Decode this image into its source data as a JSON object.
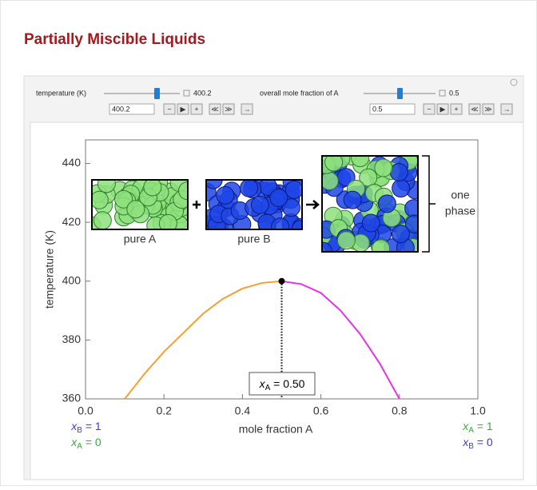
{
  "header": {
    "title": "Partially Miscible Liquids"
  },
  "controls": [
    {
      "label": "temperature (K)",
      "display": "400.2",
      "input": "400.2"
    },
    {
      "label": "overall mole fraction of A",
      "display": "0.5",
      "input": "0.5"
    }
  ],
  "chart_data": {
    "type": "line",
    "xlabel": "mole fraction A",
    "ylabel": "temperature (K)",
    "xlim": [
      0,
      1
    ],
    "ylim": [
      360,
      448
    ],
    "xticks": [
      {
        "value": 0,
        "label": "0.0"
      },
      0.2,
      0.4,
      0.6,
      0.8,
      {
        "value": 1,
        "label": "1.0"
      }
    ],
    "yticks": [
      360,
      380,
      400,
      420,
      440
    ],
    "series": [
      {
        "color": "#f5a030",
        "x": [
          0.1,
          0.15,
          0.2,
          0.25,
          0.3,
          0.35,
          0.4,
          0.45,
          0.5
        ],
        "values": [
          360,
          368.5,
          376,
          382.5,
          389,
          394,
          397.5,
          399.4,
          400
        ]
      },
      {
        "color": "#e830e8",
        "x": [
          0.5,
          0.55,
          0.6,
          0.65,
          0.7,
          0.75,
          0.8
        ],
        "values": [
          400,
          399,
          396,
          390,
          382,
          372,
          360
        ]
      }
    ],
    "marker": {
      "x": 0.5,
      "y": 400
    },
    "marker_label": {
      "symbol": "x",
      "subscript": "A",
      "text": " = 0.50"
    },
    "left_labels": [
      {
        "symbol": "x",
        "subscript": "B",
        "text": " = 1",
        "color": "#3a3ae0"
      },
      {
        "symbol": "x",
        "subscript": "A",
        "text": " = 0",
        "color": "#3aa83a"
      }
    ],
    "right_labels": [
      {
        "symbol": "x",
        "subscript": "A",
        "text": " = 1",
        "color": "#3aa83a"
      },
      {
        "symbol": "x",
        "subscript": "B",
        "text": " = 0",
        "color": "#3a3ae0"
      }
    ],
    "illustration": {
      "pure_a": "pure A",
      "pure_b": "pure B",
      "phase": [
        "one",
        "phase"
      ]
    }
  }
}
